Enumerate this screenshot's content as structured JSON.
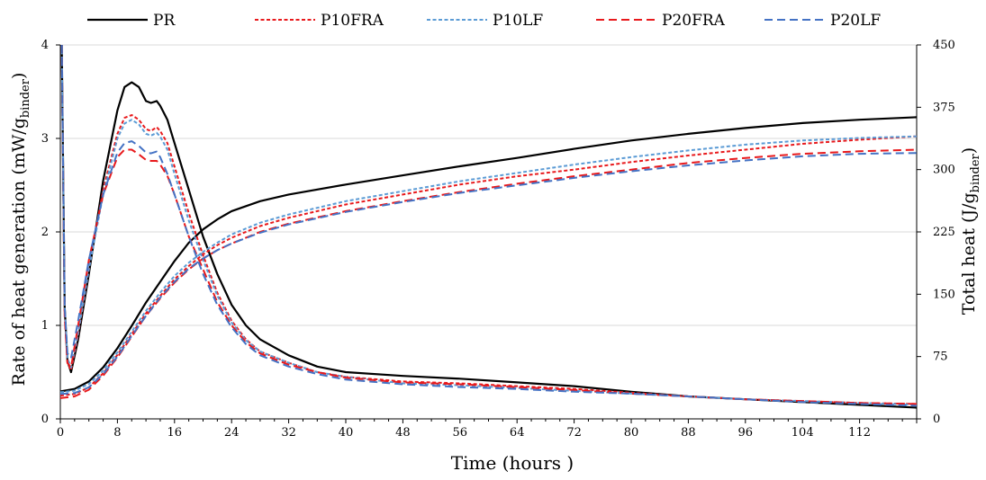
{
  "chart_data": {
    "type": "line",
    "xlabel": "Time (hours )",
    "ylabel_left": "Rate of heat generation (mW/g",
    "ylabel_left_sub": "binder",
    "ylabel_left_end": ")",
    "ylabel_right": "Total heat (J/g",
    "ylabel_right_sub": "binder",
    "ylabel_right_end": ")",
    "xlim": [
      0,
      120
    ],
    "ylim_left": [
      0,
      4
    ],
    "ylim_right": [
      0,
      450
    ],
    "x_ticks": [
      "0",
      "8",
      "16",
      "24",
      "32",
      "40",
      "48",
      "56",
      "64",
      "72",
      "80",
      "88",
      "96",
      "104",
      "112"
    ],
    "x_tick_values": [
      0,
      8,
      16,
      24,
      32,
      40,
      48,
      56,
      64,
      72,
      80,
      88,
      96,
      104,
      112
    ],
    "left_ticks": [
      "0",
      "1",
      "2",
      "3",
      "4"
    ],
    "left_tick_values": [
      0,
      1,
      2,
      3,
      4
    ],
    "right_ticks": [
      "0",
      "75",
      "150",
      "225",
      "300",
      "375",
      "450"
    ],
    "right_tick_values": [
      0,
      75,
      150,
      225,
      300,
      375,
      450
    ],
    "grid": "horizontal",
    "legend_position": "top",
    "series": [
      {
        "name": "PR",
        "color": "#000000",
        "dash": "solid",
        "heat_rate": [
          [
            0.2,
            4.0
          ],
          [
            0.6,
            1.2
          ],
          [
            1.0,
            0.62
          ],
          [
            1.5,
            0.5
          ],
          [
            2.5,
            0.85
          ],
          [
            4,
            1.55
          ],
          [
            6,
            2.55
          ],
          [
            8,
            3.3
          ],
          [
            9,
            3.55
          ],
          [
            10,
            3.6
          ],
          [
            11,
            3.55
          ],
          [
            12,
            3.4
          ],
          [
            12.7,
            3.38
          ],
          [
            13.5,
            3.4
          ],
          [
            14,
            3.35
          ],
          [
            15,
            3.2
          ],
          [
            16,
            2.95
          ],
          [
            18,
            2.45
          ],
          [
            20,
            1.95
          ],
          [
            22,
            1.55
          ],
          [
            24,
            1.22
          ],
          [
            26,
            1.0
          ],
          [
            28,
            0.85
          ],
          [
            32,
            0.68
          ],
          [
            36,
            0.56
          ],
          [
            40,
            0.5
          ],
          [
            48,
            0.46
          ],
          [
            56,
            0.43
          ],
          [
            64,
            0.39
          ],
          [
            72,
            0.35
          ],
          [
            80,
            0.29
          ],
          [
            88,
            0.24
          ],
          [
            96,
            0.21
          ],
          [
            104,
            0.18
          ],
          [
            112,
            0.15
          ],
          [
            120,
            0.12
          ]
        ],
        "total_heat": [
          [
            0,
            33
          ],
          [
            2,
            36
          ],
          [
            4,
            45
          ],
          [
            6,
            62
          ],
          [
            8,
            85
          ],
          [
            10,
            112
          ],
          [
            12,
            140
          ],
          [
            14,
            165
          ],
          [
            16,
            190
          ],
          [
            18,
            212
          ],
          [
            20,
            228
          ],
          [
            22,
            240
          ],
          [
            24,
            250
          ],
          [
            28,
            262
          ],
          [
            32,
            270
          ],
          [
            40,
            282
          ],
          [
            48,
            293
          ],
          [
            56,
            304
          ],
          [
            64,
            314
          ],
          [
            72,
            325
          ],
          [
            80,
            335
          ],
          [
            88,
            343
          ],
          [
            96,
            350
          ],
          [
            104,
            356
          ],
          [
            112,
            360
          ],
          [
            120,
            363
          ]
        ]
      },
      {
        "name": "P10FRA",
        "color": "#e8191c",
        "dash": "short",
        "heat_rate": [
          [
            0.2,
            4.0
          ],
          [
            0.6,
            1.15
          ],
          [
            1.0,
            0.6
          ],
          [
            1.5,
            0.52
          ],
          [
            2.5,
            0.9
          ],
          [
            4,
            1.6
          ],
          [
            6,
            2.45
          ],
          [
            8,
            3.05
          ],
          [
            9,
            3.22
          ],
          [
            10,
            3.25
          ],
          [
            11,
            3.2
          ],
          [
            12,
            3.1
          ],
          [
            12.7,
            3.08
          ],
          [
            13.5,
            3.12
          ],
          [
            14,
            3.08
          ],
          [
            15,
            2.95
          ],
          [
            16,
            2.7
          ],
          [
            18,
            2.2
          ],
          [
            20,
            1.75
          ],
          [
            22,
            1.35
          ],
          [
            24,
            1.05
          ],
          [
            26,
            0.85
          ],
          [
            28,
            0.72
          ],
          [
            32,
            0.6
          ],
          [
            36,
            0.5
          ],
          [
            40,
            0.45
          ],
          [
            48,
            0.4
          ],
          [
            56,
            0.38
          ],
          [
            64,
            0.35
          ],
          [
            72,
            0.32
          ],
          [
            80,
            0.28
          ],
          [
            88,
            0.24
          ],
          [
            96,
            0.21
          ],
          [
            104,
            0.19
          ],
          [
            112,
            0.17
          ],
          [
            120,
            0.16
          ]
        ],
        "total_heat": [
          [
            0,
            28
          ],
          [
            2,
            30
          ],
          [
            4,
            38
          ],
          [
            6,
            55
          ],
          [
            8,
            77
          ],
          [
            10,
            102
          ],
          [
            12,
            127
          ],
          [
            14,
            148
          ],
          [
            16,
            168
          ],
          [
            18,
            184
          ],
          [
            20,
            198
          ],
          [
            22,
            209
          ],
          [
            24,
            218
          ],
          [
            28,
            232
          ],
          [
            32,
            242
          ],
          [
            40,
            258
          ],
          [
            48,
            270
          ],
          [
            56,
            282
          ],
          [
            64,
            292
          ],
          [
            72,
            300
          ],
          [
            80,
            309
          ],
          [
            88,
            317
          ],
          [
            96,
            324
          ],
          [
            104,
            331
          ],
          [
            112,
            336
          ],
          [
            120,
            340
          ]
        ]
      },
      {
        "name": "P10LF",
        "color": "#5b9bd5",
        "dash": "short",
        "heat_rate": [
          [
            0.2,
            4.0
          ],
          [
            0.6,
            1.2
          ],
          [
            1.0,
            0.65
          ],
          [
            1.5,
            0.55
          ],
          [
            2.5,
            0.92
          ],
          [
            4,
            1.6
          ],
          [
            6,
            2.4
          ],
          [
            8,
            3.0
          ],
          [
            9,
            3.16
          ],
          [
            10,
            3.2
          ],
          [
            11,
            3.15
          ],
          [
            12,
            3.05
          ],
          [
            12.7,
            3.03
          ],
          [
            13.5,
            3.06
          ],
          [
            14,
            3.02
          ],
          [
            15,
            2.88
          ],
          [
            16,
            2.62
          ],
          [
            18,
            2.12
          ],
          [
            20,
            1.7
          ],
          [
            22,
            1.32
          ],
          [
            24,
            1.03
          ],
          [
            26,
            0.84
          ],
          [
            28,
            0.72
          ],
          [
            32,
            0.6
          ],
          [
            36,
            0.5
          ],
          [
            40,
            0.45
          ],
          [
            48,
            0.38
          ],
          [
            56,
            0.36
          ],
          [
            64,
            0.33
          ],
          [
            72,
            0.3
          ],
          [
            80,
            0.27
          ],
          [
            88,
            0.24
          ],
          [
            96,
            0.21
          ],
          [
            104,
            0.19
          ],
          [
            112,
            0.17
          ],
          [
            120,
            0.15
          ]
        ],
        "total_heat": [
          [
            0,
            32
          ],
          [
            2,
            34
          ],
          [
            4,
            42
          ],
          [
            6,
            58
          ],
          [
            8,
            80
          ],
          [
            10,
            105
          ],
          [
            12,
            130
          ],
          [
            14,
            152
          ],
          [
            16,
            172
          ],
          [
            18,
            188
          ],
          [
            20,
            201
          ],
          [
            22,
            212
          ],
          [
            24,
            222
          ],
          [
            28,
            236
          ],
          [
            32,
            246
          ],
          [
            40,
            262
          ],
          [
            48,
            274
          ],
          [
            56,
            286
          ],
          [
            64,
            296
          ],
          [
            72,
            306
          ],
          [
            80,
            315
          ],
          [
            88,
            323
          ],
          [
            96,
            330
          ],
          [
            104,
            335
          ],
          [
            112,
            338
          ],
          [
            120,
            340
          ]
        ]
      },
      {
        "name": "P20FRA",
        "color": "#e8191c",
        "dash": "long",
        "heat_rate": [
          [
            0.2,
            4.0
          ],
          [
            0.6,
            1.1
          ],
          [
            1.0,
            0.6
          ],
          [
            1.5,
            0.55
          ],
          [
            2.5,
            1.0
          ],
          [
            4,
            1.7
          ],
          [
            6,
            2.4
          ],
          [
            8,
            2.8
          ],
          [
            9,
            2.88
          ],
          [
            10,
            2.88
          ],
          [
            11,
            2.83
          ],
          [
            12,
            2.77
          ],
          [
            12.7,
            2.76
          ],
          [
            13.5,
            2.76
          ],
          [
            14,
            2.72
          ],
          [
            15,
            2.6
          ],
          [
            16,
            2.4
          ],
          [
            18,
            1.95
          ],
          [
            20,
            1.6
          ],
          [
            22,
            1.25
          ],
          [
            24,
            1.0
          ],
          [
            26,
            0.82
          ],
          [
            28,
            0.7
          ],
          [
            32,
            0.58
          ],
          [
            36,
            0.5
          ],
          [
            40,
            0.44
          ],
          [
            48,
            0.39
          ],
          [
            56,
            0.37
          ],
          [
            64,
            0.34
          ],
          [
            72,
            0.31
          ],
          [
            80,
            0.27
          ],
          [
            88,
            0.24
          ],
          [
            96,
            0.21
          ],
          [
            104,
            0.19
          ],
          [
            112,
            0.17
          ],
          [
            120,
            0.16
          ]
        ],
        "total_heat": [
          [
            0,
            25
          ],
          [
            2,
            27
          ],
          [
            4,
            35
          ],
          [
            6,
            52
          ],
          [
            8,
            74
          ],
          [
            10,
            99
          ],
          [
            12,
            124
          ],
          [
            14,
            145
          ],
          [
            16,
            164
          ],
          [
            18,
            180
          ],
          [
            20,
            193
          ],
          [
            22,
            203
          ],
          [
            24,
            211
          ],
          [
            28,
            225
          ],
          [
            32,
            235
          ],
          [
            40,
            250
          ],
          [
            48,
            262
          ],
          [
            56,
            273
          ],
          [
            64,
            283
          ],
          [
            72,
            292
          ],
          [
            80,
            300
          ],
          [
            88,
            308
          ],
          [
            96,
            314
          ],
          [
            104,
            319
          ],
          [
            112,
            322
          ],
          [
            120,
            324
          ]
        ]
      },
      {
        "name": "P20LF",
        "color": "#4472c4",
        "dash": "long",
        "heat_rate": [
          [
            0.2,
            4.0
          ],
          [
            0.6,
            1.2
          ],
          [
            1.0,
            0.7
          ],
          [
            1.5,
            0.65
          ],
          [
            2.5,
            1.05
          ],
          [
            4,
            1.7
          ],
          [
            6,
            2.4
          ],
          [
            8,
            2.85
          ],
          [
            9,
            2.95
          ],
          [
            10,
            2.97
          ],
          [
            11,
            2.92
          ],
          [
            12,
            2.85
          ],
          [
            12.7,
            2.84
          ],
          [
            13.5,
            2.86
          ],
          [
            14,
            2.8
          ],
          [
            15,
            2.62
          ],
          [
            16,
            2.4
          ],
          [
            18,
            1.95
          ],
          [
            20,
            1.55
          ],
          [
            22,
            1.22
          ],
          [
            24,
            0.98
          ],
          [
            26,
            0.8
          ],
          [
            28,
            0.68
          ],
          [
            32,
            0.56
          ],
          [
            36,
            0.48
          ],
          [
            40,
            0.42
          ],
          [
            48,
            0.37
          ],
          [
            56,
            0.34
          ],
          [
            64,
            0.32
          ],
          [
            72,
            0.29
          ],
          [
            80,
            0.27
          ],
          [
            88,
            0.24
          ],
          [
            96,
            0.21
          ],
          [
            104,
            0.18
          ],
          [
            112,
            0.16
          ],
          [
            120,
            0.14
          ]
        ],
        "total_heat": [
          [
            0,
            30
          ],
          [
            2,
            31
          ],
          [
            4,
            38
          ],
          [
            6,
            54
          ],
          [
            8,
            75
          ],
          [
            10,
            100
          ],
          [
            12,
            124
          ],
          [
            14,
            146
          ],
          [
            16,
            165
          ],
          [
            18,
            181
          ],
          [
            20,
            193
          ],
          [
            22,
            203
          ],
          [
            24,
            211
          ],
          [
            28,
            224
          ],
          [
            32,
            234
          ],
          [
            40,
            249
          ],
          [
            48,
            261
          ],
          [
            56,
            272
          ],
          [
            64,
            281
          ],
          [
            72,
            290
          ],
          [
            80,
            298
          ],
          [
            88,
            305
          ],
          [
            96,
            311
          ],
          [
            104,
            316
          ],
          [
            112,
            319
          ],
          [
            120,
            320
          ]
        ]
      }
    ]
  }
}
